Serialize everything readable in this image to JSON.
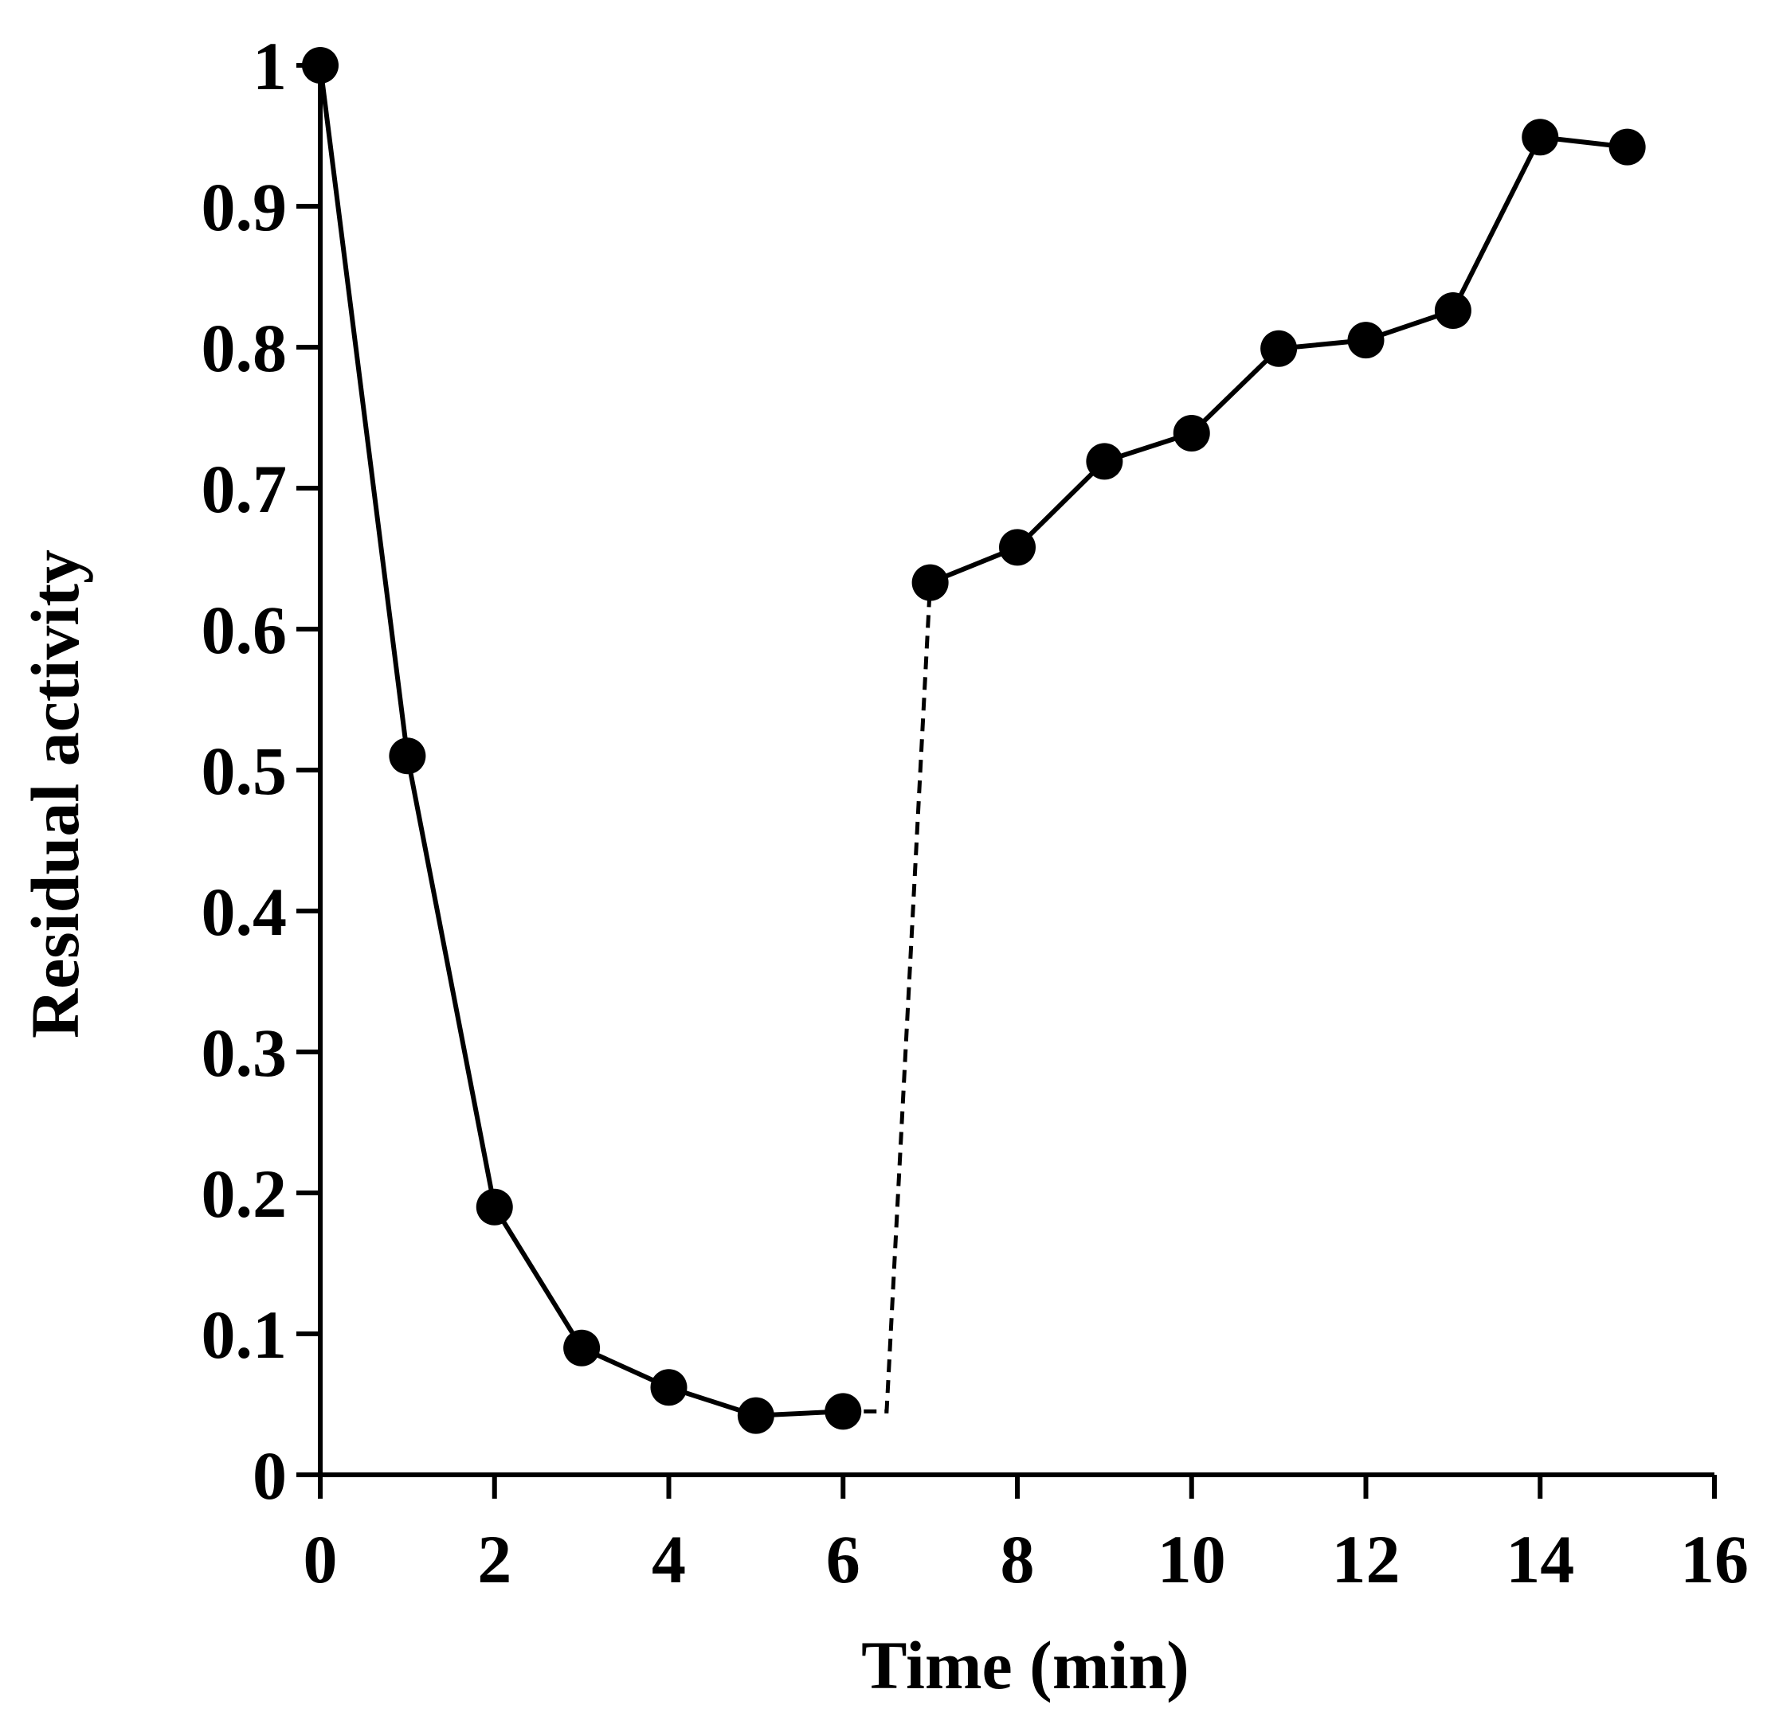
{
  "chart_data": {
    "type": "line",
    "title": "",
    "xlabel": "Time (min)",
    "ylabel": "Residual activity",
    "xlim": [
      0,
      16
    ],
    "ylim": [
      0,
      1
    ],
    "grid": false,
    "legend": "none",
    "x_ticks": [
      "0",
      "2",
      "4",
      "6",
      "8",
      "10",
      "12",
      "14",
      "16"
    ],
    "y_ticks": [
      "0",
      "0.1",
      "0.2",
      "0.3",
      "0.4",
      "0.5",
      "0.6",
      "0.7",
      "0.8",
      "0.9",
      "1"
    ],
    "series": [
      {
        "name": "Residual activity",
        "color": "#000000",
        "points": [
          {
            "x": 0,
            "y": 1.0
          },
          {
            "x": 1,
            "y": 0.51
          },
          {
            "x": 2,
            "y": 0.19
          },
          {
            "x": 3,
            "y": 0.09
          },
          {
            "x": 4,
            "y": 0.062
          },
          {
            "x": 5,
            "y": 0.042
          },
          {
            "x": 6,
            "y": 0.045
          },
          {
            "x": 7,
            "y": 0.633
          },
          {
            "x": 8,
            "y": 0.658
          },
          {
            "x": 9,
            "y": 0.719
          },
          {
            "x": 10,
            "y": 0.739
          },
          {
            "x": 11,
            "y": 0.799
          },
          {
            "x": 12,
            "y": 0.805
          },
          {
            "x": 13,
            "y": 0.826
          },
          {
            "x": 14,
            "y": 0.949
          },
          {
            "x": 15,
            "y": 0.942
          }
        ]
      }
    ],
    "dashed_connector": {
      "from": {
        "x": 6,
        "y": 0.045
      },
      "corner": {
        "x": 6.5,
        "y": 0.045
      },
      "to": {
        "x": 7,
        "y": 0.633
      }
    }
  }
}
